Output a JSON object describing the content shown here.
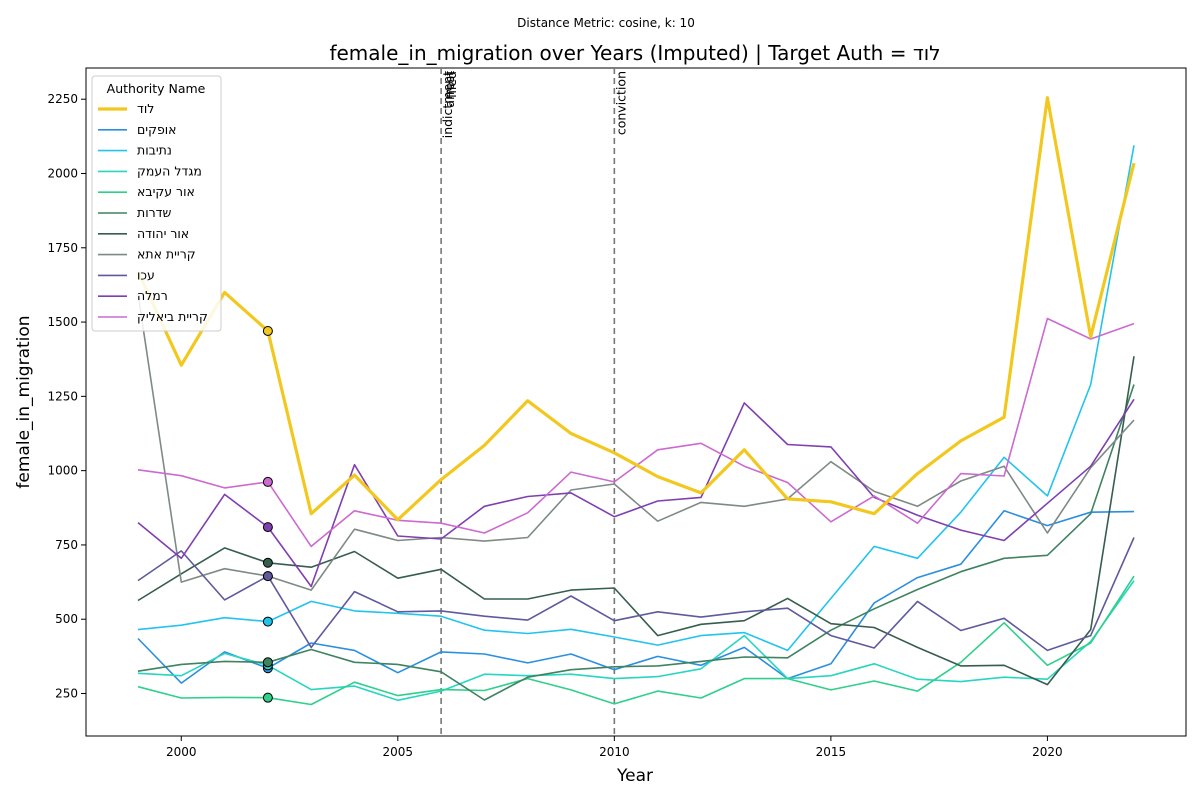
{
  "chart_data": {
    "type": "line",
    "suptitle": "Distance Metric: cosine, k: 10",
    "title": "female_in_migration over Years (Imputed) | Target Auth = לוד",
    "xlabel": "Year",
    "ylabel": "female_in_migration",
    "xlim": [
      1997.8,
      2023.2
    ],
    "ylim": [
      107,
      2355
    ],
    "xticks": [
      2000,
      2005,
      2010,
      2015,
      2020
    ],
    "yticks": [
      250,
      500,
      750,
      1000,
      1250,
      1500,
      1750,
      2000,
      2250
    ],
    "grid": false,
    "legend": {
      "title": "Authority Name",
      "placement": "top-left"
    },
    "years": [
      1999,
      2000,
      2001,
      2002,
      2003,
      2004,
      2005,
      2006,
      2007,
      2008,
      2009,
      2010,
      2011,
      2012,
      2013,
      2014,
      2015,
      2016,
      2017,
      2018,
      2019,
      2020,
      2021,
      2022
    ],
    "events": [
      {
        "year": 2006,
        "labels": [
          "indictment",
          "arrest",
          "filed"
        ]
      },
      {
        "year": 2010,
        "labels": [
          "conviction"
        ]
      }
    ],
    "imputed_year": 2002,
    "series": [
      {
        "name": "לוד",
        "color": "#f2c81f",
        "width": 3.2,
        "target": true,
        "values": [
          1670,
          1355,
          1600,
          1470,
          855,
          985,
          835,
          970,
          1085,
          1235,
          1125,
          1060,
          980,
          925,
          1070,
          905,
          895,
          855,
          990,
          1100,
          1180,
          2255,
          1450,
          2035
        ]
      },
      {
        "name": "אופקים",
        "color": "#2b8fe0",
        "width": 1.6,
        "values": [
          435,
          285,
          390,
          335,
          420,
          395,
          320,
          390,
          383,
          353,
          383,
          330,
          375,
          345,
          405,
          300,
          350,
          555,
          640,
          685,
          865,
          815,
          860,
          862
        ]
      },
      {
        "name": "נתיבות",
        "color": "#22c4ee",
        "width": 1.6,
        "values": [
          465,
          480,
          505,
          492,
          560,
          528,
          520,
          510,
          463,
          452,
          466,
          440,
          413,
          445,
          455,
          395,
          570,
          745,
          705,
          860,
          1045,
          915,
          1290,
          2095
        ]
      },
      {
        "name": "מגדל העמק",
        "color": "#27d6c0",
        "width": 1.6,
        "values": [
          318,
          310,
          385,
          345,
          263,
          275,
          227,
          258,
          315,
          310,
          315,
          300,
          307,
          333,
          445,
          300,
          310,
          350,
          298,
          290,
          305,
          298,
          425,
          630
        ]
      },
      {
        "name": "אור עקיבא",
        "color": "#2fcf8c",
        "width": 1.6,
        "values": [
          273,
          235,
          237,
          236,
          213,
          288,
          243,
          263,
          260,
          300,
          262,
          215,
          258,
          235,
          300,
          300,
          262,
          292,
          258,
          355,
          488,
          345,
          420,
          645
        ]
      },
      {
        "name": "שדרות",
        "color": "#3f8360",
        "width": 1.6,
        "values": [
          325,
          348,
          358,
          355,
          398,
          355,
          348,
          323,
          228,
          305,
          330,
          340,
          343,
          358,
          373,
          370,
          463,
          535,
          600,
          660,
          705,
          715,
          855,
          1290
        ]
      },
      {
        "name": "אור יהודה",
        "color": "#365e4e",
        "width": 1.6,
        "values": [
          563,
          653,
          740,
          690,
          675,
          728,
          638,
          668,
          568,
          568,
          598,
          605,
          445,
          483,
          495,
          570,
          485,
          472,
          405,
          343,
          345,
          280,
          465,
          1385
        ]
      },
      {
        "name": "קריית אתא",
        "color": "#7f8a85",
        "width": 1.6,
        "values": [
          1595,
          625,
          670,
          645,
          598,
          803,
          765,
          775,
          763,
          775,
          935,
          955,
          830,
          893,
          880,
          905,
          1030,
          930,
          880,
          965,
          1015,
          790,
          1010,
          1170
        ]
      },
      {
        "name": "עכו",
        "color": "#5f5a9c",
        "width": 1.6,
        "values": [
          630,
          730,
          565,
          645,
          405,
          593,
          525,
          528,
          510,
          497,
          578,
          495,
          525,
          507,
          525,
          537,
          445,
          403,
          560,
          462,
          503,
          395,
          445,
          775
        ]
      },
      {
        "name": "רמלה",
        "color": "#7f3fb0",
        "width": 1.6,
        "values": [
          825,
          705,
          920,
          810,
          610,
          1020,
          780,
          770,
          880,
          913,
          925,
          845,
          898,
          910,
          1228,
          1088,
          1080,
          910,
          850,
          800,
          765,
          890,
          1015,
          1240
        ]
      },
      {
        "name": "קריית ביאליק",
        "color": "#cc6ad0",
        "width": 1.6,
        "values": [
          1003,
          983,
          942,
          962,
          745,
          865,
          833,
          823,
          790,
          858,
          995,
          962,
          1070,
          1092,
          1015,
          960,
          828,
          915,
          823,
          990,
          982,
          1512,
          1443,
          1495
        ]
      }
    ]
  }
}
